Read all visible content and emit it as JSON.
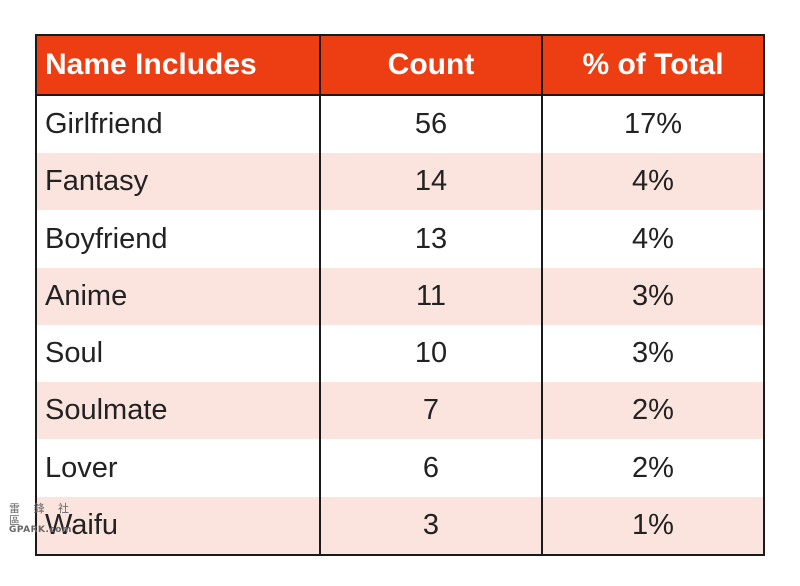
{
  "chart_data": {
    "type": "table",
    "columns": [
      "Name Includes",
      "Count",
      "% of Total"
    ],
    "rows": [
      [
        "Girlfriend",
        "56",
        "17%"
      ],
      [
        "Fantasy",
        "14",
        "4%"
      ],
      [
        "Boyfriend",
        "13",
        "4%"
      ],
      [
        "Anime",
        "11",
        "3%"
      ],
      [
        "Soul",
        "10",
        "3%"
      ],
      [
        "Soulmate",
        "7",
        "2%"
      ],
      [
        "Lover",
        "6",
        "2%"
      ],
      [
        "Waifu",
        "3",
        "1%"
      ]
    ]
  },
  "colors": {
    "header_bg": "#ec3e12",
    "header_text": "#ffffff",
    "stripe": "#fce4de",
    "border": "#1a1a1a"
  },
  "watermark": {
    "glyphs": "雷 鋒 社 區",
    "site": "GPARK.com"
  }
}
